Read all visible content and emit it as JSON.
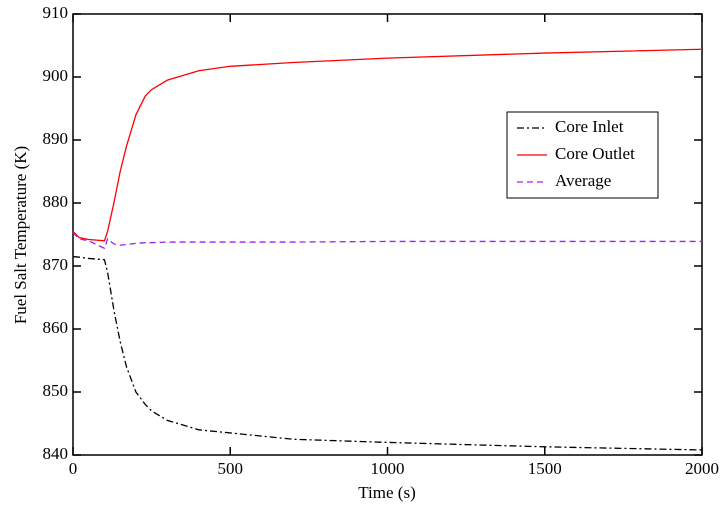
{
  "chart_data": {
    "type": "line",
    "xlabel": "Time (s)",
    "ylabel": "Fuel Salt Temperature (K)",
    "x": [
      0,
      20,
      50,
      100,
      110,
      130,
      150,
      170,
      200,
      230,
      250,
      300,
      400,
      500,
      700,
      1000,
      1500,
      2000
    ],
    "series": [
      {
        "name": "Core Inlet",
        "color": "#000000",
        "linestyle": "dashdot",
        "values": [
          871.5,
          871.4,
          871.2,
          871.0,
          869.0,
          863.0,
          858.0,
          854.0,
          850.0,
          848.0,
          847.0,
          845.5,
          844.0,
          843.5,
          842.5,
          842.0,
          841.3,
          840.8
        ]
      },
      {
        "name": "Core Outlet",
        "color": "#ff0000",
        "linestyle": "solid",
        "values": [
          875.5,
          874.5,
          874.2,
          874.0,
          875.5,
          880.0,
          885.0,
          889.0,
          894.0,
          897.0,
          898.0,
          899.5,
          901.0,
          901.7,
          902.3,
          903.0,
          903.8,
          904.4
        ]
      },
      {
        "name": "Average",
        "color": "#a020f0",
        "linestyle": "dashed",
        "values": [
          875.3,
          874.3,
          874.0,
          872.8,
          874.3,
          873.5,
          873.3,
          873.4,
          873.6,
          873.7,
          873.7,
          873.8,
          873.8,
          873.8,
          873.8,
          873.9,
          873.9,
          873.9
        ]
      }
    ],
    "xlim": [
      0,
      2000
    ],
    "xticks": [
      0,
      500,
      1000,
      1500,
      2000
    ],
    "ylim": [
      840,
      910
    ],
    "yticks": [
      840,
      850,
      860,
      870,
      880,
      890,
      900,
      910
    ],
    "grid": false,
    "legend": "right"
  }
}
